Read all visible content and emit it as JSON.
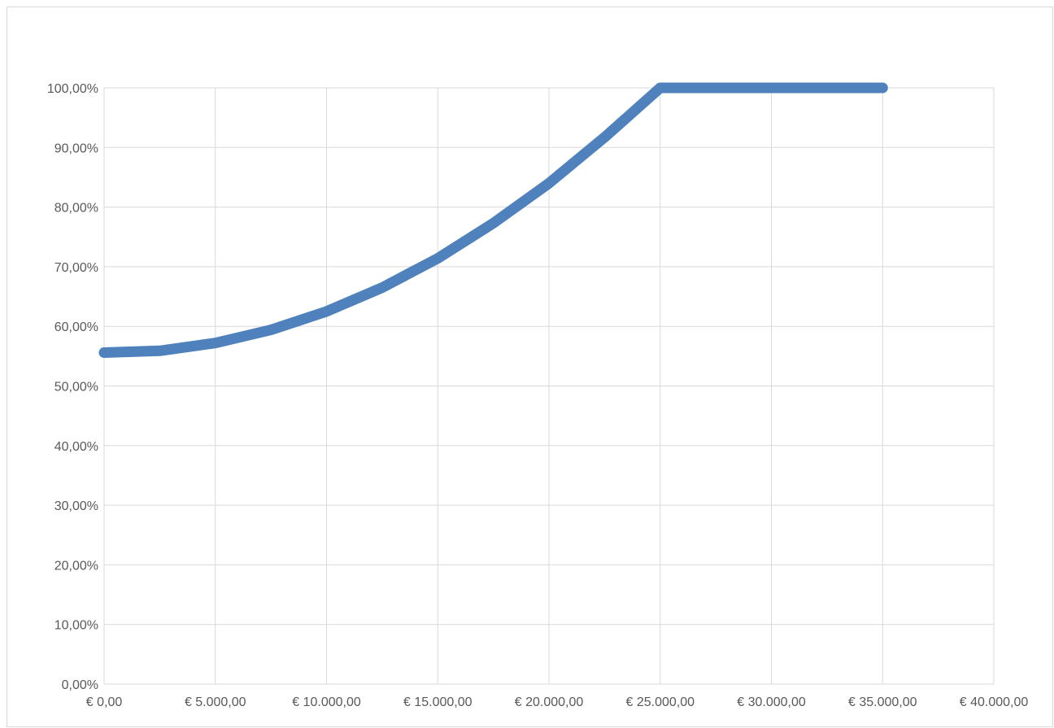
{
  "chart_data": {
    "type": "line",
    "title": "",
    "xlabel": "",
    "ylabel": "",
    "xlim": [
      0,
      40000
    ],
    "ylim": [
      0,
      100
    ],
    "grid": true,
    "legend": "none",
    "x_ticks": [
      0,
      5000,
      10000,
      15000,
      20000,
      25000,
      30000,
      35000,
      40000
    ],
    "x_tick_labels": [
      "€ 0,00",
      "€ 5.000,00",
      "€ 10.000,00",
      "€ 15.000,00",
      "€ 20.000,00",
      "€ 25.000,00",
      "€ 30.000,00",
      "€ 35.000,00",
      "€ 40.000,00"
    ],
    "y_ticks": [
      0,
      10,
      20,
      30,
      40,
      50,
      60,
      70,
      80,
      90,
      100
    ],
    "y_tick_labels": [
      "0,00%",
      "10,00%",
      "20,00%",
      "30,00%",
      "40,00%",
      "50,00%",
      "60,00%",
      "70,00%",
      "80,00%",
      "90,00%",
      "100,00%"
    ],
    "series": [
      {
        "color": "#4f81bd",
        "x": [
          0,
          2500,
          5000,
          7500,
          10000,
          12500,
          15000,
          17500,
          20000,
          22500,
          25000,
          27500,
          30000,
          32500,
          35000
        ],
        "y": [
          55.6,
          55.9,
          57.2,
          59.4,
          62.5,
          66.5,
          71.4,
          77.3,
          84.0,
          91.7,
          100.0,
          100.0,
          100.0,
          100.0,
          100.0
        ]
      }
    ]
  }
}
